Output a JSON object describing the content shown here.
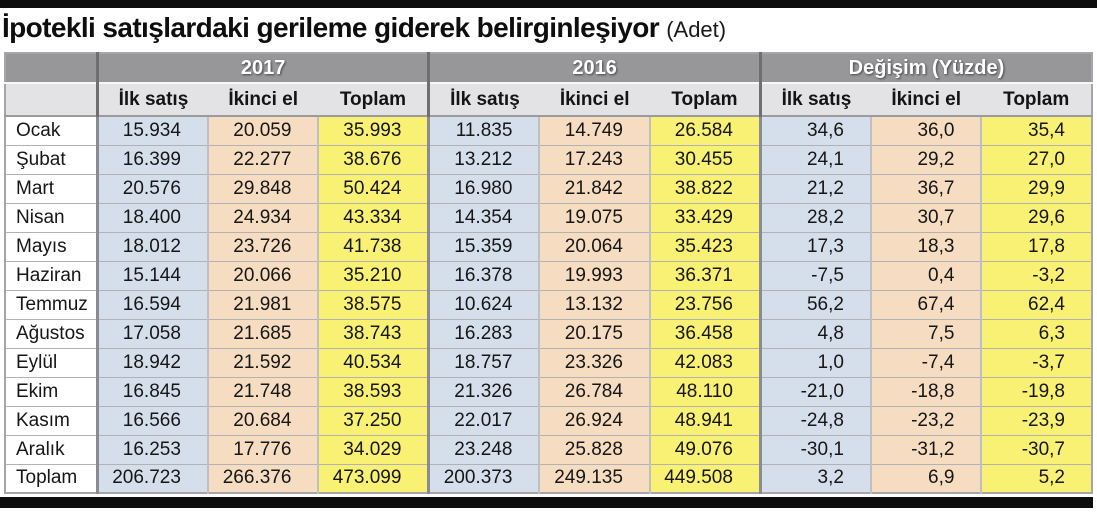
{
  "title": {
    "main": "İpotekli satışlardaki gerileme giderek belirginleşiyor",
    "unit": "(Adet)"
  },
  "chart_data": {
    "type": "table",
    "title": "İpotekli satışlardaki gerileme giderek belirginleşiyor (Adet)",
    "column_groups": [
      "2017",
      "2016",
      "Değişim (Yüzde)"
    ],
    "sub_columns": [
      "İlk satış",
      "İkinci el",
      "Toplam"
    ],
    "rows": [
      {
        "label": "Ocak",
        "values": [
          "15.934",
          "20.059",
          "35.993",
          "11.835",
          "14.749",
          "26.584",
          "34,6",
          "36,0",
          "35,4"
        ]
      },
      {
        "label": "Şubat",
        "values": [
          "16.399",
          "22.277",
          "38.676",
          "13.212",
          "17.243",
          "30.455",
          "24,1",
          "29,2",
          "27,0"
        ]
      },
      {
        "label": "Mart",
        "values": [
          "20.576",
          "29.848",
          "50.424",
          "16.980",
          "21.842",
          "38.822",
          "21,2",
          "36,7",
          "29,9"
        ]
      },
      {
        "label": "Nisan",
        "values": [
          "18.400",
          "24.934",
          "43.334",
          "14.354",
          "19.075",
          "33.429",
          "28,2",
          "30,7",
          "29,6"
        ]
      },
      {
        "label": "Mayıs",
        "values": [
          "18.012",
          "23.726",
          "41.738",
          "15.359",
          "20.064",
          "35.423",
          "17,3",
          "18,3",
          "17,8"
        ]
      },
      {
        "label": "Haziran",
        "values": [
          "15.144",
          "20.066",
          "35.210",
          "16.378",
          "19.993",
          "36.371",
          "-7,5",
          "0,4",
          "-3,2"
        ]
      },
      {
        "label": "Temmuz",
        "values": [
          "16.594",
          "21.981",
          "38.575",
          "10.624",
          "13.132",
          "23.756",
          "56,2",
          "67,4",
          "62,4"
        ]
      },
      {
        "label": "Ağustos",
        "values": [
          "17.058",
          "21.685",
          "38.743",
          "16.283",
          "20.175",
          "36.458",
          "4,8",
          "7,5",
          "6,3"
        ]
      },
      {
        "label": "Eylül",
        "values": [
          "18.942",
          "21.592",
          "40.534",
          "18.757",
          "23.326",
          "42.083",
          "1,0",
          "-7,4",
          "-3,7"
        ]
      },
      {
        "label": "Ekim",
        "values": [
          "16.845",
          "21.748",
          "38.593",
          "21.326",
          "26.784",
          "48.110",
          "-21,0",
          "-18,8",
          "-19,8"
        ]
      },
      {
        "label": "Kasım",
        "values": [
          "16.566",
          "20.684",
          "37.250",
          "22.017",
          "26.924",
          "48.941",
          "-24,8",
          "-23,2",
          "-23,9"
        ]
      },
      {
        "label": "Aralık",
        "values": [
          "16.253",
          "17.776",
          "34.029",
          "23.248",
          "25.828",
          "49.076",
          "-30,1",
          "-31,2",
          "-30,7"
        ]
      },
      {
        "label": "Toplam",
        "values": [
          "206.723",
          "266.376",
          "473.099",
          "200.373",
          "249.135",
          "449.508",
          "3,2",
          "6,9",
          "5,2"
        ]
      }
    ]
  },
  "colors": {
    "first_sale_column_bg": "#d4dfeb",
    "second_hand_column_bg": "#f6dcc1",
    "total_column_bg": "#f8f173",
    "group_header_bg": "#97979a",
    "sub_header_bg": "#e3e3e5",
    "rule_bar": "#0d0d0d"
  }
}
